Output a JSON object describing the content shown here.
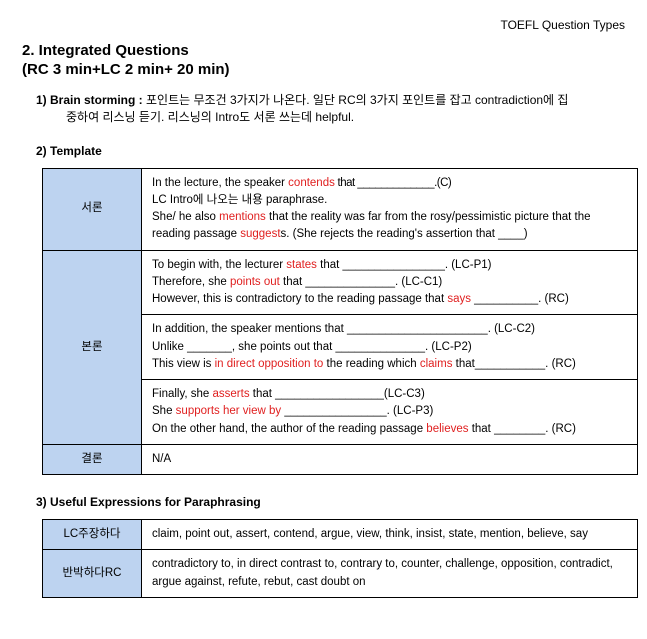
{
  "colors": {
    "text": "#000000",
    "highlight": "#e02020",
    "table_header_bg": "#bdd3f0",
    "table_border": "#000000",
    "background": "#ffffff"
  },
  "fonts": {
    "title_pt": 15,
    "body_pt": 12,
    "table_pt": 11.5
  },
  "header": {
    "right": "TOEFL Question Types"
  },
  "section": {
    "number_title": "2. Integrated Questions",
    "timing": " (RC 3 min+LC 2 min+ 20 min)"
  },
  "items": {
    "one": {
      "label": "1) Brain storming : ",
      "text_a": "포인트는 무조건 3가지가 나온다. 일단 RC의 3가지 포인트를 잡고 contradiction에 집",
      "text_b": "중하여 리스닝 듣기. 리스닝의 Intro도 서론 쓰는데 helpful."
    },
    "two": {
      "label": "2) Template"
    },
    "three": {
      "label": "3) Useful Expressions for Paraphrasing"
    }
  },
  "template_table": {
    "rows": {
      "intro": {
        "header": "서론",
        "t1a": "In the lecture, the speaker ",
        "t1b_red": "contends",
        "t1c": " that _____________.(C)",
        "t2": "LC Intro에 나오는 내용 paraphrase.",
        "t3a": "She/ he also ",
        "t3b_red": "mentions",
        "t3c": " that the reality was far from the rosy/pessimistic picture that the reading passage ",
        "t3d_red": "suggest",
        "t3e": "s. (She rejects the reading's assertion that ____)"
      },
      "body1": {
        "t1a": "To begin with, the lecturer ",
        "t1b_red": "states",
        "t1c": " that ________________. (LC-P1)",
        "t2a": "Therefore, she ",
        "t2b_red": "points out",
        "t2c": " that ______________. (LC-C1)",
        "t3a": "However, this is contradictory to the reading passage that ",
        "t3b_red": "says",
        "t3c": " __________. (RC)"
      },
      "body_header": "본론",
      "body2": {
        "t1": "In addition, the speaker mentions that ______________________. (LC-C2)",
        "t2": "Unlike _______, she points out that ______________. (LC-P2)",
        "t3a": "This view is ",
        "t3b_red": "in direct opposition to",
        "t3c": " the reading which ",
        "t3d_red": "claims",
        "t3e": " that___________. (RC)"
      },
      "body3": {
        "t1a": "Finally, she ",
        "t1b_red": "asserts",
        "t1c": " that _________________(LC-C3)",
        "t2a": "She ",
        "t2b_red": "supports her view by",
        "t2c": " ________________. (LC-P3)",
        "t3a": "On the other hand, the author of the reading passage ",
        "t3b_red": "believes",
        "t3c": " that ________. (RC)"
      },
      "conclusion": {
        "header": "결론",
        "text": "N/A"
      }
    }
  },
  "expr_table": {
    "rows": {
      "r1": {
        "header": "LC주장하다",
        "text": "claim, point out, assert, contend, argue, view, think, insist, state, mention, believe, say"
      },
      "r2": {
        "header": "반박하다RC",
        "text": "contradictory to, in direct contrast to, contrary to, counter, challenge, opposition, contradict, argue against, refute, rebut, cast doubt on"
      }
    }
  }
}
